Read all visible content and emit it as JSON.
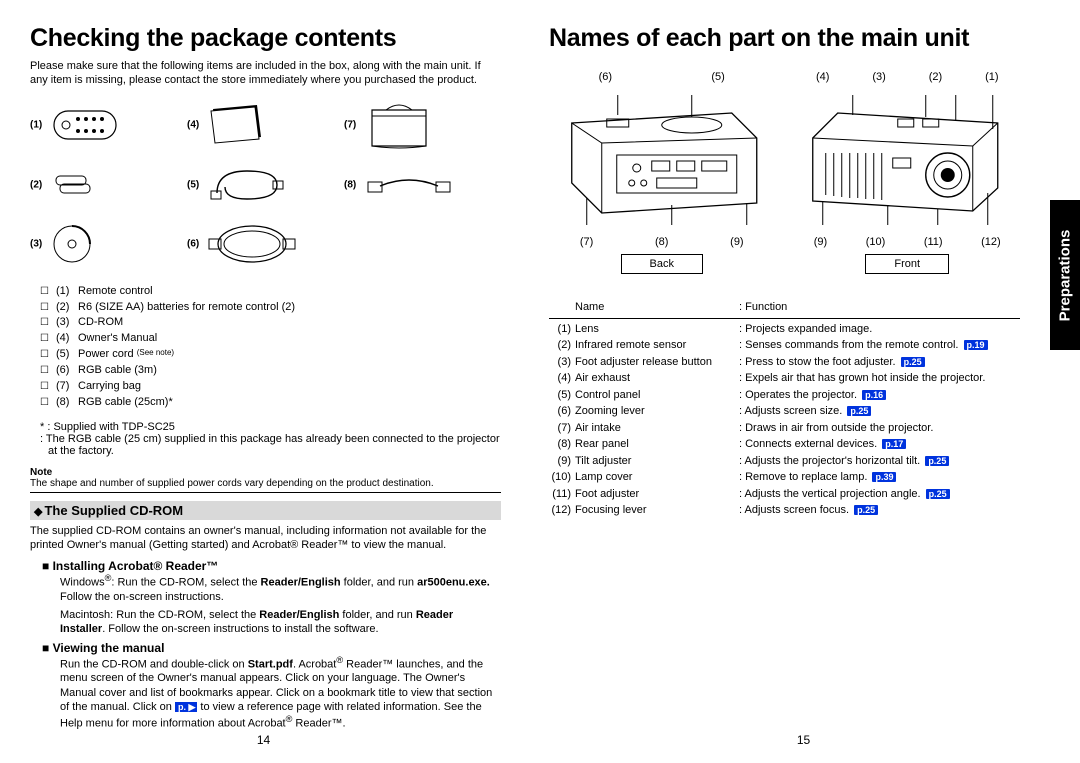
{
  "left": {
    "title": "Checking the package contents",
    "intro": "Please make sure that the following items are included in the box, along with the main unit. If any item is missing, please contact the store immediately where you purchased the product.",
    "grid_numbers": [
      "(1)",
      "(2)",
      "(3)",
      "(4)",
      "(5)",
      "(6)",
      "(7)",
      "(8)"
    ],
    "checklist": [
      {
        "n": "(1)",
        "t": "Remote control"
      },
      {
        "n": "(2)",
        "t": "R6 (SIZE AA) batteries for remote control (2)"
      },
      {
        "n": "(3)",
        "t": "CD-ROM"
      },
      {
        "n": "(4)",
        "t": "Owner's Manual"
      },
      {
        "n": "(5)",
        "t": "Power cord (See note)"
      },
      {
        "n": "(6)",
        "t": "RGB cable (3m)"
      },
      {
        "n": "(7)",
        "t": "Carrying bag"
      },
      {
        "n": "(8)",
        "t": "RGB cable (25cm)*"
      }
    ],
    "supplied_note_1": "* : Supplied with TDP-SC25",
    "supplied_note_2": ": The RGB cable (25 cm) supplied in this package has already been connected to the projector at the factory.",
    "note_label": "Note",
    "note_text": "The shape and number of supplied power cords vary depending on the product destination.",
    "section_cd": "The Supplied CD-ROM",
    "cd_para": "The supplied CD-ROM contains an owner's manual, including information not available for the printed Owner's manual (Getting started) and Acrobat® Reader™ to view the manual.",
    "install_hd": "Installing Acrobat® Reader™",
    "install_p1": "Windows®: Run the CD-ROM, select the Reader/English folder, and run ar500enu.exe. Follow the on-screen instructions.",
    "install_p2": "Macintosh: Run the CD-ROM, select the Reader/English folder, and run Reader Installer. Follow the on-screen instructions to install the software.",
    "view_hd": "Viewing the manual",
    "view_p": "Run the CD-ROM and double-click on Start.pdf. Acrobat® Reader™ launches, and the menu screen of the Owner's manual appears. Click on your language. The Owner's Manual cover and list of bookmarks appear. Click on a bookmark title to view that section of the manual. Click on  p.   to view a reference page with related information. See the Help menu for more information about Acrobat® Reader™.",
    "page_num": "14"
  },
  "right": {
    "title": "Names of each part on the main unit",
    "back_label": "Back",
    "front_label": "Front",
    "back_top": [
      "(6)",
      "(5)"
    ],
    "back_bot": [
      "(7)",
      "(8)",
      "(9)"
    ],
    "front_top": [
      "(4)",
      "(3)",
      "(2)",
      "(1)"
    ],
    "front_bot": [
      "(9)",
      "(10)",
      "(11)",
      "(12)"
    ],
    "table_head_name": "Name",
    "table_head_func": ": Function",
    "rows": [
      {
        "n": "(1)",
        "name": "Lens",
        "func": ": Projects expanded image.",
        "ref": ""
      },
      {
        "n": "(2)",
        "name": "Infrared remote sensor",
        "func": ": Senses commands from the remote control.",
        "ref": "p.19"
      },
      {
        "n": "(3)",
        "name": "Foot adjuster release button",
        "func": ": Press to stow the foot adjuster.",
        "ref": "p.25"
      },
      {
        "n": "(4)",
        "name": "Air exhaust",
        "func": ": Expels air that has grown hot inside the projector.",
        "ref": ""
      },
      {
        "n": "(5)",
        "name": "Control panel",
        "func": ": Operates the projector.",
        "ref": "p.16"
      },
      {
        "n": "(6)",
        "name": "Zooming lever",
        "func": ": Adjusts screen size.",
        "ref": "p.25"
      },
      {
        "n": "(7)",
        "name": "Air intake",
        "func": ": Draws in air from outside the projector.",
        "ref": ""
      },
      {
        "n": "(8)",
        "name": "Rear panel",
        "func": ": Connects external devices.",
        "ref": "p.17"
      },
      {
        "n": "(9)",
        "name": "Tilt adjuster",
        "func": ": Adjusts the projector's horizontal tilt.",
        "ref": "p.25"
      },
      {
        "n": "(10)",
        "name": "Lamp cover",
        "func": ": Remove to replace lamp.",
        "ref": "p.39"
      },
      {
        "n": "(11)",
        "name": "Foot adjuster",
        "func": ": Adjusts the vertical projection angle.",
        "ref": "p.25"
      },
      {
        "n": "(12)",
        "name": "Focusing lever",
        "func": ": Adjusts screen focus.",
        "ref": "p.25"
      }
    ],
    "page_num": "15",
    "side_tab": "Preparations"
  }
}
